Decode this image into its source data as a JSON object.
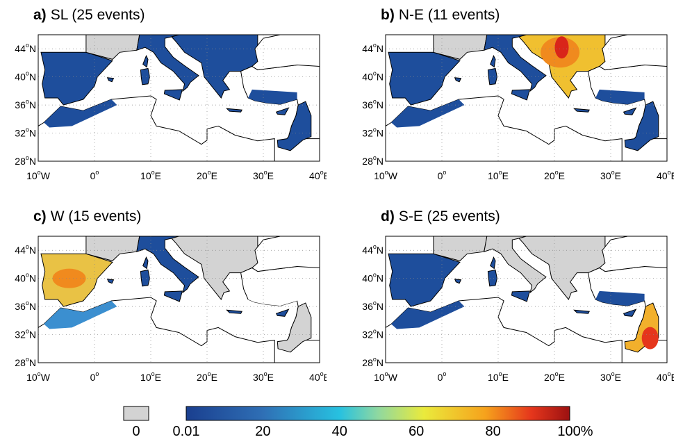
{
  "panels": [
    {
      "letter": "a)",
      "title": "SL (25 events)",
      "hotspots": []
    },
    {
      "letter": "b)",
      "title": "N-E (11 events)",
      "hotspots": [
        "balkans"
      ]
    },
    {
      "letter": "c)",
      "title": "W (15 events)",
      "hotspots": [
        "iberia"
      ]
    },
    {
      "letter": "d)",
      "title": "S-E (25 events)",
      "hotspots": [
        "levant"
      ]
    }
  ],
  "axes": {
    "lon_ticks": [
      "10",
      "W",
      "0",
      "",
      "10",
      "E",
      "20",
      "E",
      "30",
      "E",
      "40",
      "E"
    ],
    "lon_labels": [
      {
        "num": "10",
        "dir": "W"
      },
      {
        "num": "0",
        "dir": ""
      },
      {
        "num": "10",
        "dir": "E"
      },
      {
        "num": "20",
        "dir": "E"
      },
      {
        "num": "30",
        "dir": "E"
      },
      {
        "num": "40",
        "dir": "E"
      }
    ],
    "lat_labels": [
      {
        "num": "44",
        "dir": "N"
      },
      {
        "num": "40",
        "dir": "N"
      },
      {
        "num": "36",
        "dir": "N"
      },
      {
        "num": "32",
        "dir": "N"
      },
      {
        "num": "28",
        "dir": "N"
      }
    ],
    "lon_range": [
      -10,
      40
    ],
    "lat_range": [
      28,
      46
    ]
  },
  "colorbar": {
    "zero_label": "0",
    "labels": [
      "0.01",
      "20",
      "40",
      "60",
      "80",
      "100%"
    ],
    "zero_color": "#d3d3d3",
    "colors": [
      "#1a3f8f",
      "#2f6fb5",
      "#27b3dc",
      "#8fd8a0",
      "#e8e84a",
      "#f6a21c",
      "#e5361c",
      "#9c1111"
    ]
  },
  "colors": {
    "sea": "#ffffff",
    "nodata_land": "#d3d3d3",
    "low": "#1e4e9c",
    "coast": "#000000"
  }
}
